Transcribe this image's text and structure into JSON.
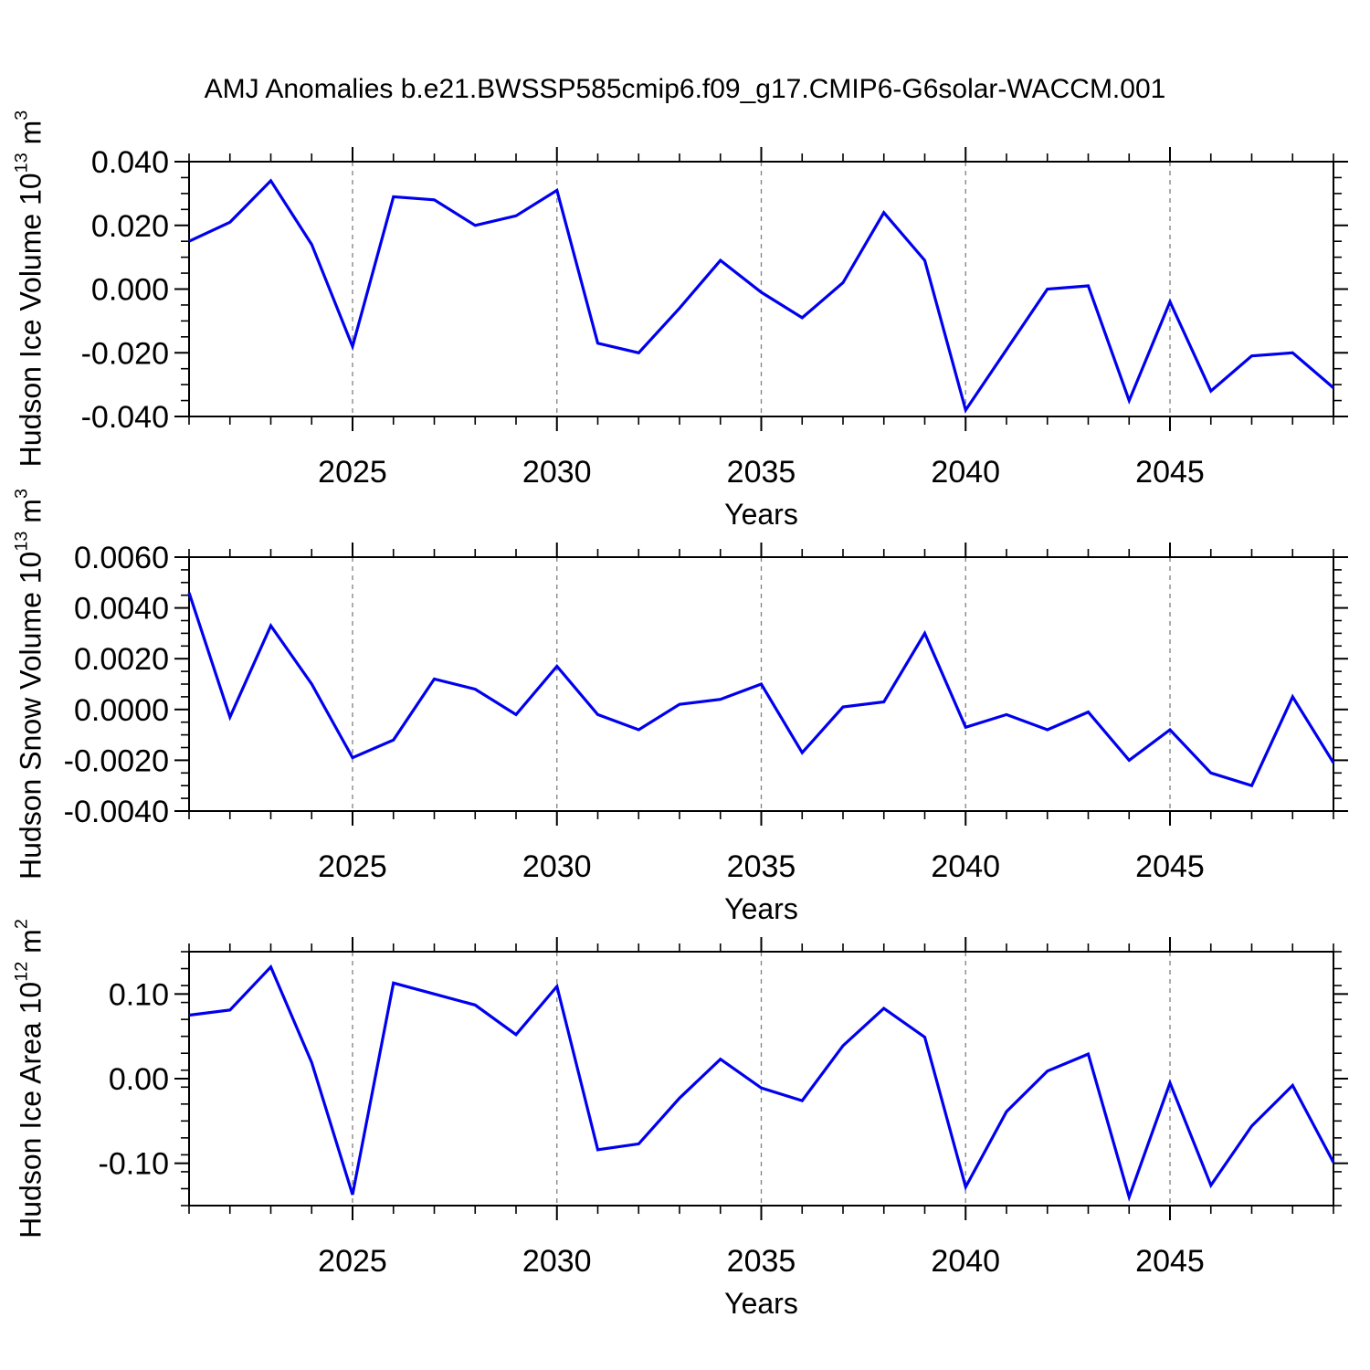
{
  "title": "AMJ Anomalies b.e21.BWSSP585cmip6.f09_g17.CMIP6-G6solar-WACCM.001",
  "colors": {
    "line": "#0000ee",
    "axis": "#000000",
    "grid": "#808080",
    "background": "#ffffff",
    "text": "#000000"
  },
  "chart_data": [
    {
      "type": "line",
      "name": "hudson-ice-volume",
      "ylabel_prefix": "Hudson Ice Volume 10",
      "ylabel_sup1": "13",
      "ylabel_mid": " m",
      "ylabel_sup2": "3",
      "xlabel": "Years",
      "xlim": [
        2021,
        2049
      ],
      "ylim": [
        -0.04,
        0.04
      ],
      "yminor_step": 0.005,
      "xminor_step": 1,
      "grid_on": true,
      "legend": "none",
      "yticks": [
        {
          "value": 0.04,
          "label": "0.040"
        },
        {
          "value": 0.02,
          "label": "0.020"
        },
        {
          "value": 0.0,
          "label": "0.000"
        },
        {
          "value": -0.02,
          "label": "-0.020"
        },
        {
          "value": -0.04,
          "label": "-0.040"
        }
      ],
      "xticks": [
        {
          "value": 2025,
          "label": "2025"
        },
        {
          "value": 2030,
          "label": "2030"
        },
        {
          "value": 2035,
          "label": "2035"
        },
        {
          "value": 2040,
          "label": "2040"
        },
        {
          "value": 2045,
          "label": "2045"
        }
      ],
      "x": [
        2021,
        2022,
        2023,
        2024,
        2025,
        2026,
        2027,
        2028,
        2029,
        2030,
        2031,
        2032,
        2033,
        2034,
        2035,
        2036,
        2037,
        2038,
        2039,
        2040,
        2041,
        2042,
        2043,
        2044,
        2045,
        2046,
        2047,
        2048,
        2049
      ],
      "values": [
        0.015,
        0.021,
        0.034,
        0.014,
        -0.018,
        0.029,
        0.028,
        0.02,
        0.023,
        0.031,
        -0.017,
        -0.02,
        -0.006,
        0.009,
        -0.001,
        -0.009,
        0.002,
        0.024,
        0.009,
        -0.038,
        -0.019,
        0.0,
        0.001,
        -0.035,
        -0.004,
        -0.032,
        -0.021,
        -0.02,
        -0.031
      ]
    },
    {
      "type": "line",
      "name": "hudson-snow-volume",
      "ylabel_prefix": "Hudson Snow Volume 10",
      "ylabel_sup1": "13",
      "ylabel_mid": " m",
      "ylabel_sup2": "3",
      "xlabel": "Years",
      "xlim": [
        2021,
        2049
      ],
      "ylim": [
        -0.004,
        0.006
      ],
      "yminor_step": 0.0005,
      "xminor_step": 1,
      "grid_on": true,
      "legend": "none",
      "yticks": [
        {
          "value": 0.006,
          "label": "0.0060"
        },
        {
          "value": 0.004,
          "label": "0.0040"
        },
        {
          "value": 0.002,
          "label": "0.0020"
        },
        {
          "value": 0.0,
          "label": "0.0000"
        },
        {
          "value": -0.002,
          "label": "-0.0020"
        },
        {
          "value": -0.004,
          "label": "-0.0040"
        }
      ],
      "xticks": [
        {
          "value": 2025,
          "label": "2025"
        },
        {
          "value": 2030,
          "label": "2030"
        },
        {
          "value": 2035,
          "label": "2035"
        },
        {
          "value": 2040,
          "label": "2040"
        },
        {
          "value": 2045,
          "label": "2045"
        }
      ],
      "x": [
        2021,
        2022,
        2023,
        2024,
        2025,
        2026,
        2027,
        2028,
        2029,
        2030,
        2031,
        2032,
        2033,
        2034,
        2035,
        2036,
        2037,
        2038,
        2039,
        2040,
        2041,
        2042,
        2043,
        2044,
        2045,
        2046,
        2047,
        2048,
        2049
      ],
      "values": [
        0.0046,
        -0.0003,
        0.0033,
        0.001,
        -0.0019,
        -0.0012,
        0.0012,
        0.0008,
        -0.0002,
        0.0017,
        -0.0002,
        -0.0008,
        0.0002,
        0.0004,
        0.001,
        -0.0017,
        0.0001,
        0.0003,
        0.003,
        -0.0007,
        -0.0002,
        -0.0008,
        -0.0001,
        -0.002,
        -0.0008,
        -0.0025,
        -0.003,
        0.0005,
        -0.0021
      ]
    },
    {
      "type": "line",
      "name": "hudson-ice-area",
      "ylabel_prefix": "Hudson Ice Area 10",
      "ylabel_sup1": "12",
      "ylabel_mid": " m",
      "ylabel_sup2": "2",
      "xlabel": "Years",
      "xlim": [
        2021,
        2049
      ],
      "ylim": [
        -0.15,
        0.15
      ],
      "yminor_step": 0.02,
      "xminor_step": 1,
      "grid_on": true,
      "legend": "none",
      "yticks": [
        {
          "value": 0.1,
          "label": "0.10"
        },
        {
          "value": 0.0,
          "label": "0.00"
        },
        {
          "value": -0.1,
          "label": "-0.10"
        }
      ],
      "xticks": [
        {
          "value": 2025,
          "label": "2025"
        },
        {
          "value": 2030,
          "label": "2030"
        },
        {
          "value": 2035,
          "label": "2035"
        },
        {
          "value": 2040,
          "label": "2040"
        },
        {
          "value": 2045,
          "label": "2045"
        }
      ],
      "x": [
        2021,
        2022,
        2023,
        2024,
        2025,
        2026,
        2027,
        2028,
        2029,
        2030,
        2031,
        2032,
        2033,
        2034,
        2035,
        2036,
        2037,
        2038,
        2039,
        2040,
        2041,
        2042,
        2043,
        2044,
        2045,
        2046,
        2047,
        2048,
        2049
      ],
      "values": [
        0.075,
        0.081,
        0.132,
        0.019,
        -0.137,
        0.113,
        0.1,
        0.087,
        0.052,
        0.109,
        -0.084,
        -0.077,
        -0.023,
        0.023,
        -0.011,
        -0.026,
        0.039,
        0.083,
        0.049,
        -0.128,
        -0.039,
        0.009,
        0.029,
        -0.14,
        -0.005,
        -0.126,
        -0.056,
        -0.008,
        -0.099
      ]
    }
  ]
}
